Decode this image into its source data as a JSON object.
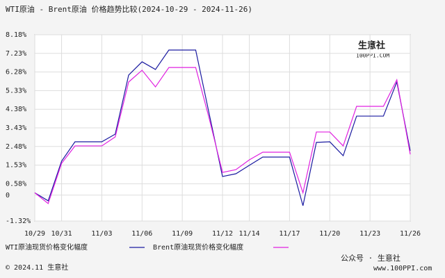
{
  "chart_data": {
    "type": "line",
    "title": "WTI原油 - Brent原油 价格趋势比较(2024-10-29 - 2024-11-26)",
    "categories": [
      "10/29",
      null,
      "10/31",
      null,
      null,
      "11/03",
      null,
      null,
      "11/06",
      null,
      null,
      "11/09",
      null,
      null,
      "11/12",
      null,
      "11/14",
      null,
      null,
      "11/17",
      null,
      null,
      "11/20",
      null,
      null,
      "11/23",
      null,
      null,
      "11/26"
    ],
    "series": [
      {
        "name": "WTI原油现货价格变化幅度",
        "color": "#1a1aa0",
        "values": [
          0.12,
          -0.29,
          1.73,
          2.72,
          2.72,
          2.72,
          3.11,
          6.12,
          6.8,
          6.41,
          7.4,
          7.4,
          7.4,
          4.17,
          0.95,
          1.09,
          1.52,
          1.94,
          1.94,
          1.94,
          -0.54,
          2.69,
          2.72,
          2.01,
          4.03,
          4.03,
          4.03,
          5.77,
          2.26
        ]
      },
      {
        "name": "Brent原油现货价格变化幅度",
        "color": "#e020e0",
        "values": [
          0.12,
          -0.43,
          1.62,
          2.51,
          2.51,
          2.51,
          2.97,
          5.77,
          6.37,
          5.52,
          6.51,
          6.51,
          6.51,
          3.93,
          1.16,
          1.3,
          1.8,
          2.19,
          2.19,
          2.19,
          0.12,
          3.22,
          3.22,
          2.51,
          4.53,
          4.53,
          4.53,
          5.88,
          2.08
        ]
      }
    ],
    "ylim": [
      -1.32,
      8.18
    ],
    "yticks": [
      {
        "value": 8.18,
        "label": "8.18%"
      },
      {
        "value": 7.23,
        "label": "7.23%"
      },
      {
        "value": 6.28,
        "label": "6.28%"
      },
      {
        "value": 5.33,
        "label": "5.33%"
      },
      {
        "value": 4.38,
        "label": "4.38%"
      },
      {
        "value": 3.43,
        "label": "3.43%"
      },
      {
        "value": 2.48,
        "label": "2.48%"
      },
      {
        "value": 1.53,
        "label": "1.53%"
      },
      {
        "value": 0.58,
        "label": "0.58%"
      },
      0,
      {
        "value": -1.32,
        "label": "-1.32%"
      }
    ],
    "grid": true,
    "logo": {
      "name": "生意社",
      "site": "100PPI.COM"
    },
    "footer": "© 2024.11 生意社",
    "watermark": {
      "account": "公众号 · 生意社",
      "url": "www.100PPI.com"
    }
  }
}
